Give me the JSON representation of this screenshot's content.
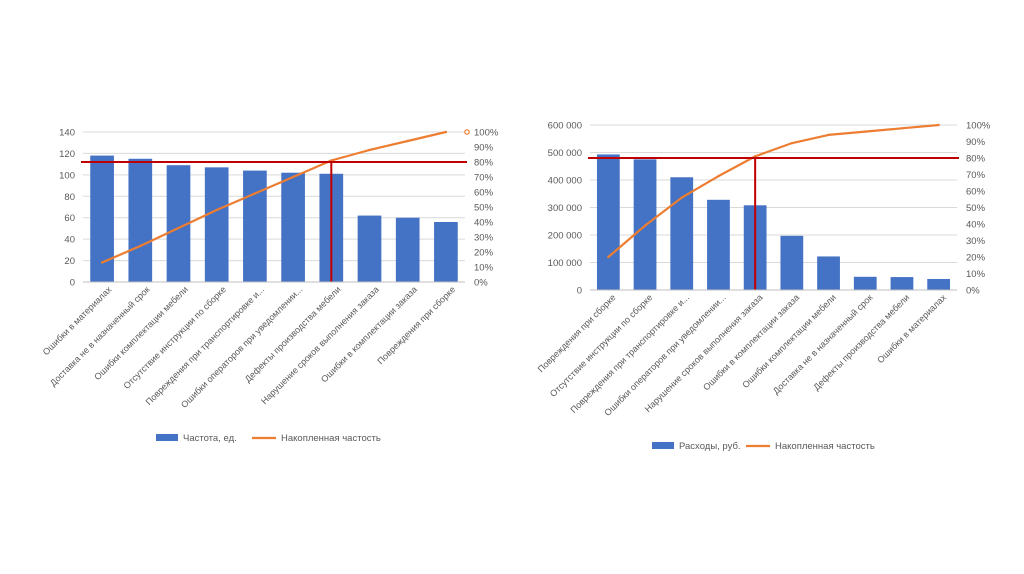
{
  "chart_data": [
    {
      "type": "bar",
      "categories": [
        "Ошибки в материалах",
        "Доставка не в назначенный срок",
        "Ошибки комплектации мебели",
        "Отсутствие инструкции по сборке",
        "Повреждения при транспортировке и...",
        "Ошибки операторов при уведомлении...",
        "Дефекты производства мебели",
        "Нарушение сроков выполнения заказа",
        "Ошибки в комплектации заказа",
        "Повреждения при сборке"
      ],
      "series": [
        {
          "name": "Частота, ед.",
          "kind": "bar",
          "axis": "left",
          "color": "#4472c4",
          "values": [
            118,
            115,
            109,
            107,
            104,
            102,
            101,
            62,
            60,
            56
          ]
        },
        {
          "name": "Накопленная частость",
          "kind": "line",
          "axis": "right",
          "color": "#ed7d31",
          "values": [
            0.13,
            0.24,
            0.36,
            0.48,
            0.59,
            0.7,
            0.81,
            0.88,
            0.94,
            1.0
          ]
        }
      ],
      "ylim": [
        0,
        140
      ],
      "yticks": [
        "0",
        "20",
        "40",
        "60",
        "80",
        "100",
        "120",
        "140"
      ],
      "y2lim": [
        0,
        1
      ],
      "y2ticks": [
        "0%",
        "10%",
        "20%",
        "30%",
        "40%",
        "50%",
        "60%",
        "70%",
        "80%",
        "90%",
        "100%"
      ],
      "threshold": 0.8,
      "threshold_category_index": 6,
      "threshold_color": "#c00000",
      "legend_position": "bottom",
      "grid": true
    },
    {
      "type": "bar",
      "categories": [
        "Повреждения при сборке",
        "Отсутствие инструкции по сборке",
        "Повреждения при транспортировке и...",
        "Ошибки операторов при уведомлении...",
        "Нарушение сроков выполнения заказа",
        "Ошибки в комплектации заказа",
        "Ошибки комплектации мебели",
        "Доставка не в назначенный срок",
        "Дефекты производства мебели",
        "Ошибки в материалах"
      ],
      "series": [
        {
          "name": "Расходы, руб.",
          "kind": "bar",
          "axis": "left",
          "color": "#4472c4",
          "values": [
            493000,
            475000,
            410000,
            328000,
            308000,
            197000,
            122000,
            48000,
            47000,
            40000
          ]
        },
        {
          "name": "Накопленная частость",
          "kind": "line",
          "axis": "right",
          "color": "#ed7d31",
          "values": [
            0.2,
            0.39,
            0.56,
            0.69,
            0.81,
            0.89,
            0.94,
            0.96,
            0.98,
            1.0
          ]
        }
      ],
      "ylim": [
        0,
        600000
      ],
      "yticks": [
        "0",
        "100 000",
        "200 000",
        "300 000",
        "400 000",
        "500 000",
        "600 000"
      ],
      "y2lim": [
        0,
        1
      ],
      "y2ticks": [
        "0%",
        "10%",
        "20%",
        "30%",
        "40%",
        "50%",
        "60%",
        "70%",
        "80%",
        "90%",
        "100%"
      ],
      "threshold": 0.8,
      "threshold_category_index": 4,
      "threshold_color": "#c00000",
      "legend_position": "bottom",
      "grid": true
    }
  ]
}
